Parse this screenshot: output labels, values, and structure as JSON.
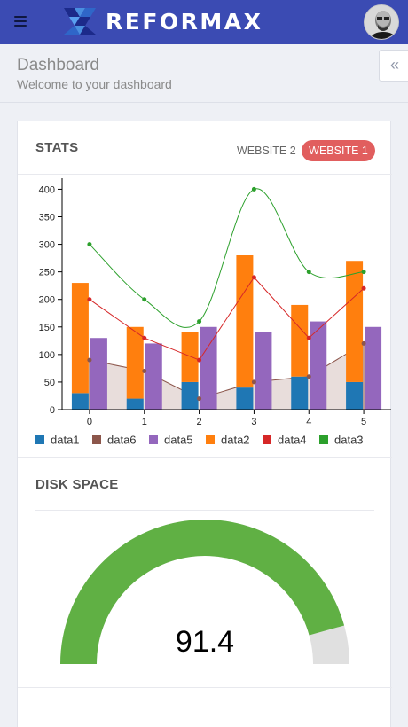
{
  "brand": {
    "name": "REFORMAX"
  },
  "header": {
    "title": "Dashboard",
    "subtitle": "Welcome to your dashboard"
  },
  "icons": {
    "menu": "hamburger-menu-icon",
    "collapse": "double-chevron-left-icon",
    "avatar": "user-avatar"
  },
  "collapse_label": "«",
  "stats": {
    "title": "STATS",
    "tabs": [
      {
        "label": "WEBSITE 2",
        "active": false
      },
      {
        "label": "WEBSITE 1",
        "active": true
      }
    ]
  },
  "chart_data": {
    "type": "bar",
    "x": [
      0,
      1,
      2,
      3,
      4,
      5
    ],
    "ylim": [
      0,
      420
    ],
    "yticks": [
      0,
      50,
      100,
      150,
      200,
      250,
      300,
      350,
      400
    ],
    "legend_position": "bottom-left",
    "series": [
      {
        "name": "data1",
        "type": "bar",
        "stack": "a",
        "color": "#1f77b4",
        "values": [
          30,
          20,
          50,
          40,
          60,
          50
        ]
      },
      {
        "name": "data6",
        "type": "area",
        "color": "#8c564b",
        "values": [
          90,
          70,
          20,
          50,
          60,
          120
        ]
      },
      {
        "name": "data5",
        "type": "bar",
        "stack": "b",
        "color": "#9467bd",
        "values": [
          130,
          120,
          150,
          140,
          160,
          150
        ]
      },
      {
        "name": "data2",
        "type": "bar",
        "stack": "a",
        "color": "#ff7f0e",
        "values": [
          200,
          130,
          90,
          240,
          130,
          220
        ]
      },
      {
        "name": "data4",
        "type": "line",
        "color": "#d62728",
        "values": [
          200,
          130,
          90,
          240,
          130,
          220
        ]
      },
      {
        "name": "data3",
        "type": "spline",
        "color": "#2ca02c",
        "values": [
          300,
          200,
          160,
          400,
          250,
          250
        ]
      }
    ]
  },
  "disk": {
    "title": "DISK SPACE",
    "gauge": {
      "value": 91.4,
      "label": "91.4",
      "min": 0,
      "max": 100,
      "color": "#60b044",
      "track_color": "#e0e0e0"
    }
  }
}
